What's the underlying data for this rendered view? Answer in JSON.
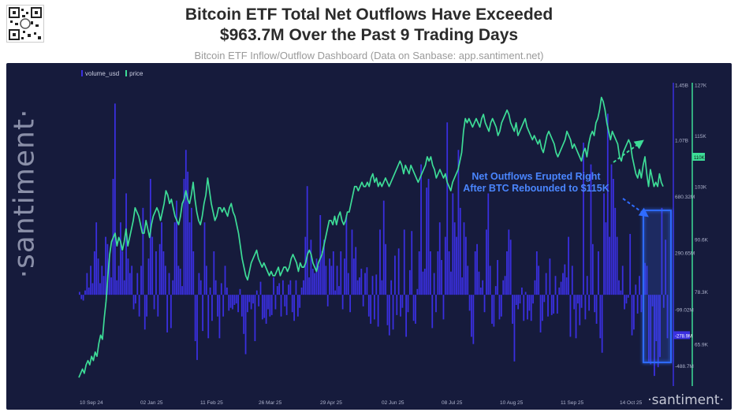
{
  "header": {
    "title_line1": "Bitcoin ETF Total Net Outflows Have Exceeded",
    "title_line2": "$963.7M Over the Past 9 Trading Days",
    "subtitle": "Bitcoin ETF Inflow/Outflow Dashboard (Data on Sanbase: app.santiment.net)"
  },
  "brand": {
    "vertical": "·santiment·",
    "bottom": "·santiment·"
  },
  "chart_data": {
    "type": "bar+line",
    "legend": [
      {
        "name": "volume_usd",
        "color": "#3a2fe0"
      },
      {
        "name": "price",
        "color": "#3ddc97"
      }
    ],
    "x_ticks": [
      "10 Sep 24",
      "02 Jan 25",
      "11 Feb 25",
      "26 Mar 25",
      "29 Apr 25",
      "02 Jun 25",
      "08 Jul 25",
      "10 Aug 25",
      "11 Sep 25",
      "14 Oct 25"
    ],
    "volume_axis": {
      "ticks": [
        "1.45B",
        "1.07B",
        "680.32M",
        "290.65M",
        "-99.02M",
        "-488.7M"
      ],
      "tick_values": [
        1450,
        1070,
        680.32,
        290.65,
        -99.02,
        -488.7
      ],
      "ylim": [
        -630,
        1480
      ],
      "badge": "-278.9M",
      "badge_value": -278.9
    },
    "price_axis": {
      "ticks": [
        "127K",
        "115K",
        "103K",
        "90.6K",
        "78.3K",
        "65.9K"
      ],
      "tick_values": [
        127,
        115,
        103,
        90.6,
        78.3,
        65.9
      ],
      "ylim": [
        56,
        128
      ],
      "badge": "110K",
      "badge_value": 110
    },
    "volume_usd_millions": [
      20,
      -30,
      -40,
      30,
      150,
      50,
      200,
      80,
      300,
      500,
      250,
      80,
      200,
      130,
      400,
      350,
      250,
      120,
      800,
      1320,
      100,
      200,
      500,
      300,
      100,
      700,
      250,
      150,
      200,
      -100,
      -60,
      150,
      -150,
      200,
      600,
      -240,
      -150,
      250,
      800,
      400,
      -100,
      300,
      -150,
      350,
      500,
      300,
      200,
      -260,
      150,
      -230,
      100,
      500,
      650,
      200,
      180,
      60,
      800,
      1000,
      850,
      500,
      600,
      300,
      -320,
      -450,
      150,
      100,
      -250,
      500,
      200,
      -300,
      50,
      -180,
      300,
      100,
      -150,
      -300,
      80,
      -150,
      200,
      50,
      -110,
      -90,
      -100,
      -70,
      -60,
      -120,
      40,
      -150,
      -270,
      -410,
      -120,
      -50,
      -100,
      -60,
      -320,
      30,
      -80,
      90,
      -170,
      -160,
      -200,
      -100,
      -150,
      -140,
      120,
      -100,
      60,
      80,
      -150,
      100,
      -80,
      -140,
      70,
      100,
      -120,
      -180,
      100,
      -150,
      -90,
      50,
      100,
      400,
      750,
      120,
      380,
      180,
      150,
      250,
      200,
      550,
      300,
      380,
      200,
      -80,
      250,
      200,
      300,
      30,
      200,
      60,
      300,
      -100,
      250,
      550,
      150,
      -120,
      450,
      250,
      330,
      100,
      120,
      180,
      -80,
      150,
      190,
      -150,
      -200,
      130,
      -170,
      140,
      -220,
      450,
      100,
      650,
      350,
      -210,
      -280,
      100,
      -240,
      270,
      -140,
      320,
      -150,
      -90,
      450,
      -290,
      -120,
      170,
      440,
      -180,
      -200,
      40,
      300,
      900,
      160,
      180,
      740,
      800,
      300,
      -230,
      150,
      -120,
      300,
      500,
      240,
      -170,
      400,
      1190,
      300,
      160,
      700,
      500,
      400,
      1000,
      600,
      120,
      500,
      400,
      200,
      -110,
      -290,
      -340,
      300,
      350,
      160,
      50,
      100,
      -120,
      450,
      700,
      200,
      -200,
      -220,
      60,
      240,
      -170,
      -150,
      100,
      130,
      300,
      450,
      380,
      -200,
      -460,
      -70,
      -100,
      -60,
      50,
      -180,
      20,
      -170,
      -110,
      -180,
      -60,
      100,
      300,
      200,
      -260,
      -180,
      -50,
      150,
      -150,
      250,
      -140,
      -130,
      130,
      -130,
      50,
      90,
      150,
      210,
      120,
      400,
      -290,
      200,
      -100,
      -300,
      -60,
      -210,
      -90,
      1050,
      -170,
      130,
      -110,
      900,
      350,
      -120,
      -200,
      300,
      -300,
      -400,
      700,
      500,
      1250,
      400,
      900,
      800,
      600,
      400,
      100,
      30,
      200,
      -100,
      -60,
      -20,
      420,
      -280,
      -240,
      70,
      -130,
      130,
      -120,
      -100,
      220,
      200,
      -460,
      -480,
      -80,
      -560,
      -320,
      -500,
      -430,
      600,
      -90,
      380,
      -300
    ],
    "price_thousands": [
      58,
      59,
      60,
      59,
      61,
      62,
      61,
      63,
      62,
      64,
      63,
      66,
      68,
      67,
      72,
      76,
      82,
      87,
      90,
      91,
      92,
      89,
      91,
      90,
      88,
      90,
      93,
      89,
      91,
      93,
      95,
      98,
      97,
      96,
      94,
      92,
      92,
      95,
      93,
      91,
      94,
      96,
      97,
      98,
      97,
      95,
      97,
      99,
      102,
      101,
      99,
      100,
      98,
      96,
      95,
      94,
      96,
      99,
      100,
      102,
      100,
      99,
      101,
      104,
      100,
      97,
      95,
      94,
      96,
      99,
      101,
      105,
      102,
      99,
      97,
      95,
      96,
      98,
      98,
      97,
      98,
      97,
      96,
      98,
      99,
      97,
      96,
      94,
      92,
      89,
      86,
      84,
      82,
      81,
      83,
      85,
      86,
      87,
      88,
      86,
      85,
      84,
      85,
      84,
      83,
      82,
      83,
      82,
      82,
      83,
      84,
      82,
      83,
      84,
      84,
      83,
      84,
      86,
      87,
      86,
      85,
      83,
      85,
      84,
      84,
      85,
      87,
      88,
      87,
      85,
      84,
      83,
      85,
      86,
      87,
      89,
      91,
      93,
      95,
      95,
      94,
      96,
      94,
      96,
      97,
      95,
      94,
      95,
      97,
      97,
      99,
      101,
      103,
      103,
      102,
      103,
      104,
      103,
      103,
      104,
      103,
      105,
      106,
      104,
      105,
      103,
      104,
      103,
      104,
      105,
      104,
      103,
      104,
      105,
      106,
      107,
      108,
      109,
      108,
      106,
      108,
      107,
      106,
      108,
      107,
      106,
      105,
      104,
      105,
      106,
      107,
      108,
      110,
      109,
      110,
      108,
      107,
      105,
      106,
      107,
      106,
      105,
      106,
      104,
      103,
      102,
      104,
      105,
      106,
      107,
      109,
      111,
      116,
      119,
      118,
      119,
      118,
      117,
      118,
      119,
      118,
      117,
      119,
      120,
      118,
      117,
      116,
      118,
      119,
      118,
      117,
      115,
      116,
      118,
      119,
      120,
      121,
      120,
      118,
      117,
      116,
      118,
      115,
      116,
      117,
      118,
      119,
      117,
      116,
      115,
      114,
      115,
      114,
      113,
      114,
      112,
      111,
      113,
      115,
      116,
      115,
      114,
      113,
      111,
      110,
      111,
      112,
      113,
      114,
      116,
      115,
      114,
      112,
      113,
      112,
      111,
      110,
      109,
      111,
      112,
      110,
      113,
      115,
      116,
      115,
      118,
      119,
      121,
      124,
      123,
      121,
      118,
      116,
      114,
      116,
      115,
      114,
      113,
      110,
      109,
      111,
      112,
      113,
      114,
      113,
      110,
      108,
      106,
      105,
      107,
      105,
      108,
      110,
      106,
      103,
      107,
      105,
      103,
      104,
      103,
      106,
      104,
      103
    ]
  },
  "annotation": {
    "text_line1": "Net Outflows Erupted Right",
    "text_line2": "After BTC Rebounded to $115K"
  }
}
